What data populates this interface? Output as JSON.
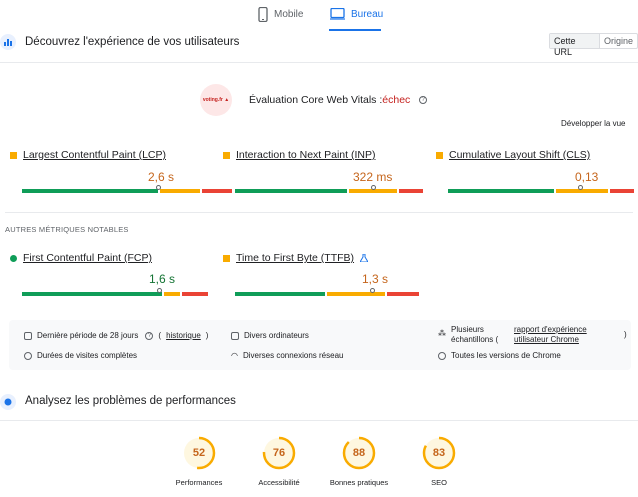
{
  "tabs": [
    {
      "label": "Mobile",
      "icon": "phone-icon"
    },
    {
      "label": "Bureau",
      "icon": "desktop-icon"
    }
  ],
  "experience": {
    "title": "Découvrez l'expérience de vos utilisateurs",
    "toggle": {
      "selected": "Cette URL",
      "other": "Origine"
    }
  },
  "cwv": {
    "title": "Évaluation Core Web Vitals :",
    "status": "échec",
    "expand_label": "Développer la vue",
    "logo_text": "voting.fr"
  },
  "metrics_core": [
    {
      "label": "Largest Contentful Paint (LCP)",
      "value": "2,6 s",
      "status": "orange",
      "distribution": [
        0.68,
        0.22,
        0.1
      ]
    },
    {
      "label": "Interaction to Next Paint (INP)",
      "value": "322 ms",
      "status": "orange",
      "distribution": [
        0.6,
        0.27,
        0.13
      ]
    },
    {
      "label": "Cumulative Layout Shift (CLS)",
      "value": "0,13",
      "status": "orange",
      "distribution": [
        0.58,
        0.22,
        0.2
      ]
    }
  ],
  "other_metrics_title": "AUTRES MÉTRIQUES NOTABLES",
  "metrics_other": [
    {
      "label": "First Contentful Paint (FCP)",
      "value": "1,6 s",
      "status": "green",
      "distribution": [
        0.76,
        0.12,
        0.12
      ]
    },
    {
      "label": "Time to First Byte (TTFB)",
      "value": "1,3 s",
      "status": "orange",
      "distribution": [
        0.5,
        0.33,
        0.17
      ]
    }
  ],
  "info": {
    "period": "Dernière période de 28 jours",
    "history": "historique",
    "durations": "Durées de visites complètes",
    "devices": "Divers ordinateurs",
    "network": "Diverses connexions réseau",
    "samples_prefix": "Plusieurs échantillons (",
    "samples_link": "rapport d'expérience utilisateur Chrome",
    "samples_suffix": ")",
    "chrome": "Toutes les versions de Chrome"
  },
  "performance": {
    "title": "Analysez les problèmes de performances",
    "scores": [
      {
        "label": "Performances",
        "value": "52"
      },
      {
        "label": "Accessibilité",
        "value": "76"
      },
      {
        "label": "Bonnes pratiques",
        "value": "88"
      },
      {
        "label": "SEO",
        "value": "83"
      }
    ]
  },
  "colors": {
    "accent": "#1a73e8",
    "good": "#0f9d58",
    "average": "#f9ab00",
    "poor": "#ea4335",
    "fail_text": "#c5221f"
  }
}
